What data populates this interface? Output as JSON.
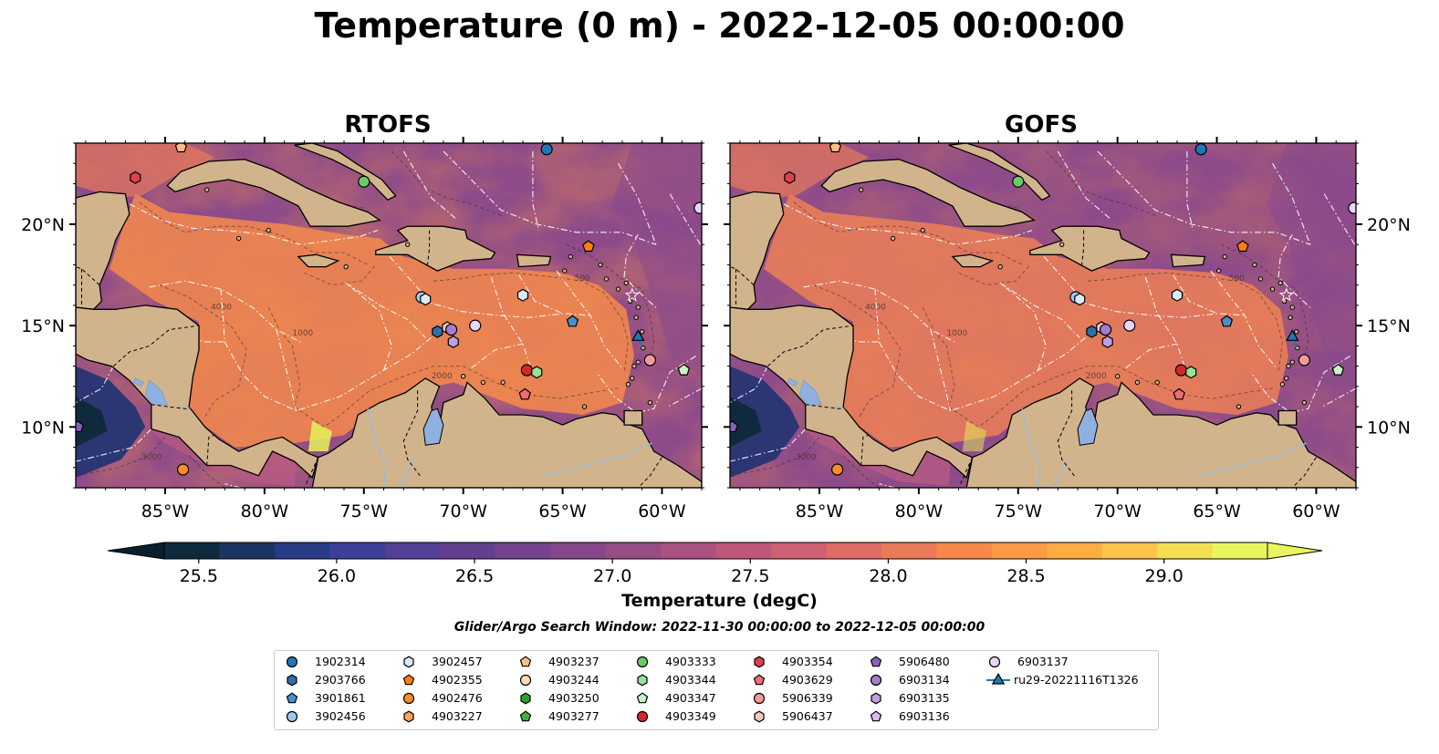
{
  "title": "Temperature (0 m) - 2022-12-05 00:00:00",
  "panels": [
    {
      "id": "rtofs",
      "title": "RTOFS"
    },
    {
      "id": "gofs",
      "title": "GOFS"
    }
  ],
  "axes": {
    "lon_range": [
      -89.5,
      -58
    ],
    "lat_range": [
      7,
      24
    ],
    "lon_ticks": [
      "85°W",
      "80°W",
      "75°W",
      "70°W",
      "65°W",
      "60°W"
    ],
    "lon_tick_values": [
      -85,
      -80,
      -75,
      -70,
      -65,
      -60
    ],
    "lat_ticks": [
      "20°N",
      "15°N",
      "10°N"
    ],
    "lat_tick_values": [
      20,
      15,
      10
    ]
  },
  "colorbar": {
    "label": "Temperature (degC)",
    "ticks": [
      "25.5",
      "26.0",
      "26.5",
      "27.0",
      "27.5",
      "28.0",
      "28.5",
      "29.0"
    ],
    "tick_values": [
      25.5,
      26.0,
      26.5,
      27.0,
      27.5,
      28.0,
      28.5,
      29.0
    ],
    "range": [
      25.375,
      29.375
    ],
    "extend": "both",
    "colors": [
      "#0f2a3d",
      "#1b3562",
      "#263c86",
      "#3d3e99",
      "#533f96",
      "#633f91",
      "#74438e",
      "#85478a",
      "#984c85",
      "#ab5180",
      "#be577a",
      "#cf6072",
      "#e06b66",
      "#ec7957",
      "#f7884a",
      "#fd9a43",
      "#ffad43",
      "#fdc549",
      "#f4df52",
      "#e9f55c"
    ]
  },
  "contour_labels": [
    "1000",
    "2000",
    "500",
    "4000",
    "3000"
  ],
  "search_window": "Glider/Argo Search Window: 2022-11-30 00:00:00 to 2022-12-05 00:00:00",
  "legend": [
    {
      "label": "1902314",
      "marker": "circle",
      "color": "#1f77b4"
    },
    {
      "label": "2903766",
      "marker": "hexagon",
      "color": "#2f6fa8"
    },
    {
      "label": "3901861",
      "marker": "pentagon",
      "color": "#4a90c8"
    },
    {
      "label": "3902456",
      "marker": "circle",
      "color": "#9ec9ec"
    },
    {
      "label": "3902457",
      "marker": "hexagon",
      "color": "#d8ebf7"
    },
    {
      "label": "4902355",
      "marker": "pentagon",
      "color": "#ff7f0e"
    },
    {
      "label": "4902476",
      "marker": "circle",
      "color": "#ff8c2a"
    },
    {
      "label": "4903227",
      "marker": "hexagon",
      "color": "#ffa45c"
    },
    {
      "label": "4903237",
      "marker": "pentagon",
      "color": "#ffbe86"
    },
    {
      "label": "4903244",
      "marker": "circle",
      "color": "#ffdcb8"
    },
    {
      "label": "4903250",
      "marker": "hexagon",
      "color": "#2ca02c"
    },
    {
      "label": "4903277",
      "marker": "pentagon",
      "color": "#3fb13f"
    },
    {
      "label": "4903333",
      "marker": "circle",
      "color": "#66cc66"
    },
    {
      "label": "4903344",
      "marker": "hexagon",
      "color": "#98e298"
    },
    {
      "label": "4903347",
      "marker": "pentagon",
      "color": "#c7f3c7"
    },
    {
      "label": "4903349",
      "marker": "circle",
      "color": "#d62728"
    },
    {
      "label": "4903354",
      "marker": "hexagon",
      "color": "#e0404a"
    },
    {
      "label": "4903629",
      "marker": "pentagon",
      "color": "#ee6c74"
    },
    {
      "label": "5906339",
      "marker": "circle",
      "color": "#f59a98"
    },
    {
      "label": "5906437",
      "marker": "hexagon",
      "color": "#f9c6c2"
    },
    {
      "label": "5906480",
      "marker": "pentagon",
      "color": "#8a5fbf"
    },
    {
      "label": "6903134",
      "marker": "circle",
      "color": "#a47dd0"
    },
    {
      "label": "6903135",
      "marker": "hexagon",
      "color": "#bf9fe0"
    },
    {
      "label": "6903136",
      "marker": "pentagon",
      "color": "#d6bff0"
    },
    {
      "label": "6903137",
      "marker": "circle",
      "color": "#e7d6f8"
    },
    {
      "label": "ru29-20221116T1326",
      "marker": "triangle-line",
      "color": "#1f77b4"
    }
  ],
  "floats": [
    {
      "label": "4903237",
      "lon": -84.2,
      "lat": 23.8
    },
    {
      "label": "4903354",
      "lon": -86.5,
      "lat": 22.3
    },
    {
      "label": "4903333",
      "lon": -75.0,
      "lat": 22.1
    },
    {
      "label": "1902314",
      "lon": -65.8,
      "lat": 23.7
    },
    {
      "label": "4902355",
      "lon": -63.7,
      "lat": 18.9
    },
    {
      "label": "3902456",
      "lon": -72.1,
      "lat": 16.4
    },
    {
      "label": "3902457",
      "lon": -71.9,
      "lat": 16.3
    },
    {
      "label": "3902457",
      "lon": -67.0,
      "lat": 16.5
    },
    {
      "label": "3901861",
      "lon": -64.5,
      "lat": 15.2
    },
    {
      "label": "2903766",
      "lon": -71.3,
      "lat": 14.7
    },
    {
      "label": "5906437",
      "lon": -70.8,
      "lat": 14.9
    },
    {
      "label": "6903134",
      "lon": -70.6,
      "lat": 14.8
    },
    {
      "label": "6903135",
      "lon": -70.5,
      "lat": 14.2
    },
    {
      "label": "6903137",
      "lon": -69.4,
      "lat": 15.0
    },
    {
      "label": "4903349",
      "lon": -66.8,
      "lat": 12.8
    },
    {
      "label": "4903344",
      "lon": -66.3,
      "lat": 12.7
    },
    {
      "label": "4903629",
      "lon": -66.9,
      "lat": 11.6
    },
    {
      "label": "5906339",
      "lon": -60.6,
      "lat": 13.3
    },
    {
      "label": "4903347",
      "lon": -58.9,
      "lat": 12.8
    },
    {
      "label": "6903137",
      "lon": -58.1,
      "lat": 20.8
    },
    {
      "label": "5906480",
      "lon": -89.4,
      "lat": 10.0
    },
    {
      "label": "4902476",
      "lon": -84.1,
      "lat": 7.9
    },
    {
      "label": "ru29-20221116T1326",
      "lon": -61.2,
      "lat": 14.5
    }
  ]
}
